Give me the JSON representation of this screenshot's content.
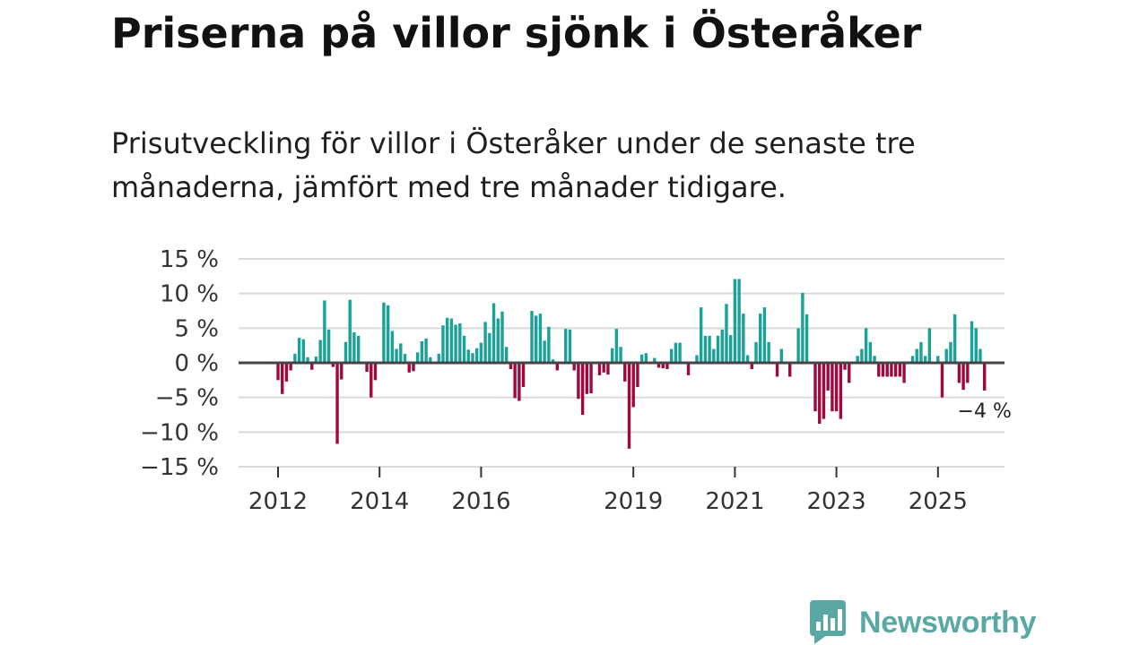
{
  "title": "Priserna på villor sjönk i Österåker",
  "subtitle": "Prisutveckling för villor i Österåker under de senaste tre månaderna, jämfört med tre månader tidigare.",
  "logo": {
    "text": "Newsworthy"
  },
  "colors": {
    "positive": "#1aa198",
    "negative": "#a0093f",
    "grid": "#d9d9d9",
    "zero": "#444444",
    "logo": "#5aa8a4"
  },
  "chart_data": {
    "type": "bar",
    "title": "Priserna på villor sjönk i Österåker",
    "xlabel": "",
    "ylabel": "",
    "ylim": [
      -15,
      15
    ],
    "grid": true,
    "y_ticks": [
      15,
      10,
      5,
      0,
      -5,
      -10,
      -15
    ],
    "y_tick_labels": [
      "15 %",
      "10 %",
      "5 %",
      "0 %",
      "−5 %",
      "−10 %",
      "−15 %"
    ],
    "x_ticks": [
      2012,
      2014,
      2016,
      2019,
      2021,
      2023,
      2025
    ],
    "x_tick_labels": [
      "2012",
      "2014",
      "2016",
      "2019",
      "2021",
      "2023",
      "2025"
    ],
    "x_start": 2012.0,
    "period": "month",
    "values": [
      -2.5,
      -4.5,
      -2.7,
      -1.1,
      1.3,
      3.6,
      3.4,
      0.8,
      -1.0,
      0.9,
      3.3,
      9.0,
      4.8,
      -0.6,
      -11.7,
      -2.4,
      3.0,
      9.1,
      4.4,
      3.9,
      0.0,
      -1.3,
      -5.0,
      -2.5,
      0.0,
      8.7,
      8.3,
      4.6,
      2.0,
      2.8,
      1.3,
      -1.4,
      -1.2,
      1.5,
      3.1,
      3.5,
      0.8,
      0.0,
      1.3,
      5.4,
      6.5,
      6.4,
      5.5,
      5.7,
      3.9,
      1.9,
      1.4,
      2.1,
      2.9,
      5.9,
      4.3,
      8.6,
      6.4,
      7.4,
      2.3,
      -0.9,
      -5.1,
      -5.5,
      -3.5,
      0.0,
      7.5,
      6.8,
      7.1,
      3.2,
      5.2,
      0.5,
      -1.1,
      0.0,
      4.9,
      4.8,
      -1.1,
      -5.2,
      -7.5,
      -4.5,
      -4.4,
      0.0,
      -1.8,
      -1.4,
      -1.7,
      2.1,
      4.9,
      2.3,
      -2.7,
      -12.4,
      -6.4,
      -3.5,
      1.2,
      1.4,
      0.0,
      0.7,
      -0.7,
      -0.8,
      -0.9,
      2.0,
      2.9,
      2.9,
      0.0,
      -1.8,
      0.0,
      1.1,
      8.0,
      3.9,
      3.9,
      2.0,
      3.9,
      4.8,
      8.5,
      4.0,
      12.1,
      12.1,
      7.1,
      1.1,
      -0.9,
      3.0,
      7.1,
      8.0,
      3.0,
      0.0,
      -2.0,
      2.0,
      0.0,
      -2.0,
      0.0,
      5.0,
      10.1,
      7.0,
      0.0,
      -7.0,
      -8.8,
      -8.1,
      -4.0,
      -7.0,
      -7.0,
      -8.1,
      -1.0,
      -2.9,
      0.0,
      1.0,
      2.0,
      5.0,
      3.0,
      1.0,
      -2.0,
      -2.0,
      -2.0,
      -2.0,
      -2.0,
      -2.0,
      -2.9,
      0.0,
      1.0,
      2.0,
      3.0,
      1.0,
      5.0,
      0.0,
      1.0,
      -5.0,
      2.0,
      3.0,
      7.0,
      -2.9,
      -3.9,
      -2.9,
      6.0,
      5.0,
      2.0,
      -4.0
    ],
    "annotations": [
      {
        "label": "−4 %",
        "value": -4,
        "position": "last-bar"
      }
    ]
  }
}
